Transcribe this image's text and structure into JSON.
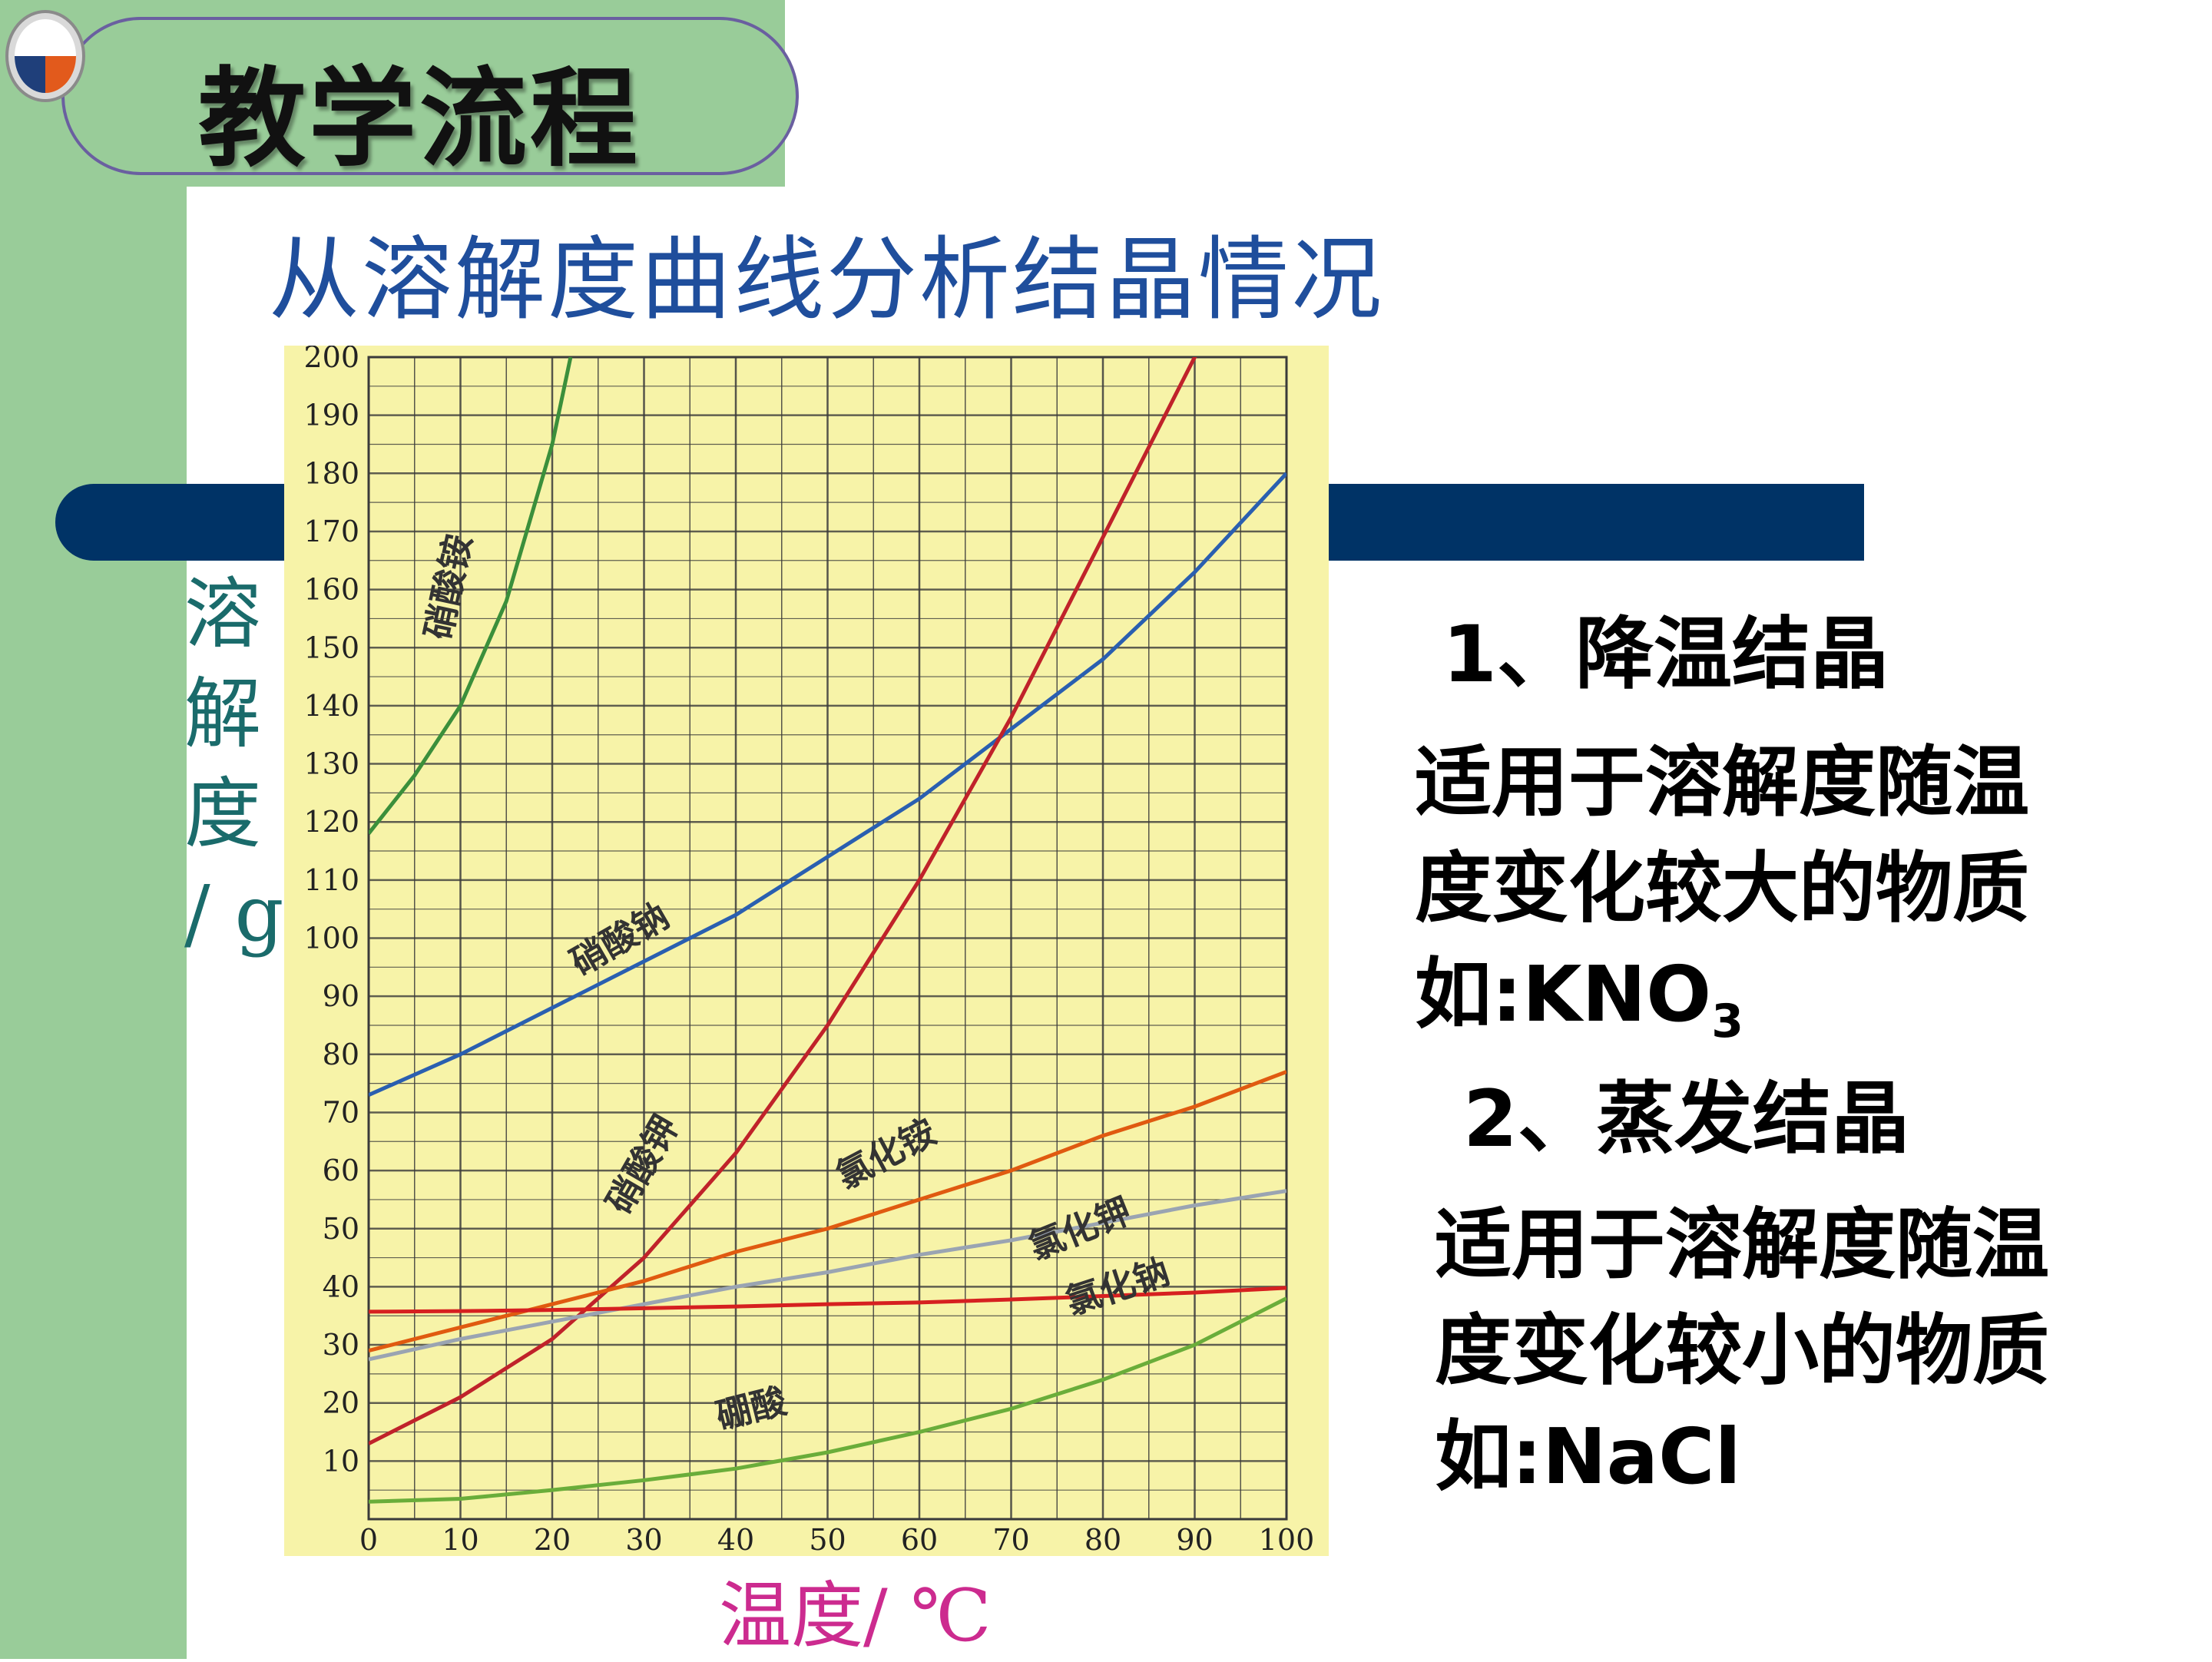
{
  "header": {
    "title": "教学流程"
  },
  "subtitle": "从溶解度曲线分析结晶情况",
  "axes": {
    "ylabel": "溶\n解\n度\n/ g",
    "xlabel": "温度/ ℃"
  },
  "notes": {
    "item1_title": "1、降温结晶",
    "item1_text": "适用于溶解度随温\n度变化较大的物质",
    "item1_example_prefix": "如:KNO",
    "item1_example_sub": "3",
    "item2_title": "2、蒸发结晶",
    "item2_text": "适用于溶解度随温\n度变化较小的物质\n如:NaCl"
  },
  "colors": {
    "chart_bg": "#f7f3a8",
    "grid": "#3a3a3a",
    "stripe": "#003366",
    "band": "#99cc99"
  },
  "chart_data": {
    "type": "line",
    "xlabel": "温度/ ℃",
    "ylabel": "溶解度/ g",
    "xlim": [
      0,
      100
    ],
    "ylim": [
      0,
      200
    ],
    "xticks": [
      0,
      10,
      20,
      30,
      40,
      50,
      60,
      70,
      80,
      90,
      100
    ],
    "yticks": [
      10,
      20,
      30,
      40,
      50,
      60,
      70,
      80,
      90,
      100,
      110,
      120,
      130,
      140,
      150,
      160,
      170,
      180,
      190,
      200
    ],
    "grid": true,
    "series": [
      {
        "name": "硝酸铵",
        "color": "#3b8f3b",
        "label_at": [
          10,
          160
        ],
        "label_angle": -78,
        "x": [
          0,
          5,
          10,
          15,
          20,
          22
        ],
        "y": [
          118,
          128,
          140,
          158,
          185,
          200
        ]
      },
      {
        "name": "硝酸钠",
        "color": "#2a5fb0",
        "label_at": [
          28,
          98
        ],
        "label_angle": -30,
        "x": [
          0,
          10,
          20,
          30,
          40,
          50,
          60,
          70,
          80,
          90,
          100
        ],
        "y": [
          73,
          80,
          88,
          96,
          104,
          114,
          124,
          136,
          148,
          163,
          180
        ]
      },
      {
        "name": "硝酸钾",
        "color": "#c0222a",
        "label_at": [
          31,
          60
        ],
        "label_angle": -60,
        "x": [
          0,
          10,
          20,
          30,
          40,
          50,
          60,
          70,
          80,
          90,
          91
        ],
        "y": [
          13,
          21,
          31,
          45,
          63,
          85,
          110,
          138,
          169,
          200,
          202
        ]
      },
      {
        "name": "氯化铵",
        "color": "#e05a10",
        "label_at": [
          57,
          61
        ],
        "label_angle": -28,
        "x": [
          0,
          10,
          20,
          30,
          40,
          50,
          60,
          70,
          80,
          90,
          100
        ],
        "y": [
          29,
          33,
          37,
          41,
          46,
          50,
          55,
          60,
          66,
          71,
          77
        ]
      },
      {
        "name": "氯化钾",
        "color": "#9aa4b2",
        "label_at": [
          78,
          48
        ],
        "label_angle": -22,
        "x": [
          0,
          10,
          20,
          30,
          40,
          50,
          60,
          70,
          80,
          90,
          100
        ],
        "y": [
          27.5,
          31,
          34,
          37,
          40,
          42.5,
          45.5,
          48,
          51,
          54,
          56.5
        ]
      },
      {
        "name": "氯化钠",
        "color": "#d62020",
        "label_at": [
          82,
          38
        ],
        "label_angle": -18,
        "x": [
          0,
          10,
          20,
          30,
          40,
          50,
          60,
          70,
          80,
          90,
          100
        ],
        "y": [
          35.7,
          35.8,
          36,
          36.3,
          36.6,
          37,
          37.3,
          37.8,
          38.4,
          39,
          39.8
        ]
      },
      {
        "name": "硼酸",
        "color": "#6aad3a",
        "label_at": [
          42,
          17
        ],
        "label_angle": -14,
        "x": [
          0,
          10,
          20,
          30,
          40,
          50,
          60,
          70,
          80,
          90,
          100
        ],
        "y": [
          3,
          3.5,
          5,
          6.7,
          8.7,
          11.5,
          15,
          19,
          24,
          30,
          38
        ]
      }
    ]
  }
}
